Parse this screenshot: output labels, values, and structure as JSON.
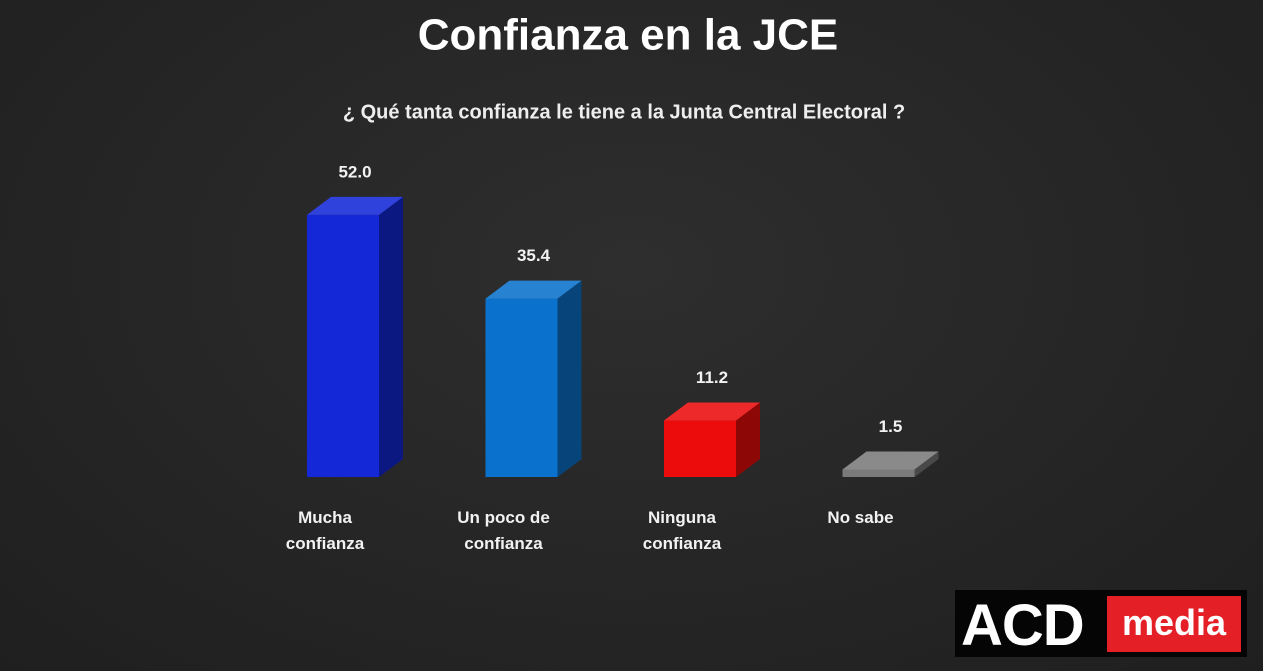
{
  "chart_data": {
    "type": "bar3d",
    "title": "Confianza en la JCE",
    "subtitle": "¿ Qué tanta confianza le tiene a la Junta Central Electoral ?",
    "categories": [
      "Mucha confianza",
      "Un poco de confianza",
      "Ninguna confianza",
      "No sabe"
    ],
    "values": [
      52.0,
      35.4,
      11.2,
      1.5
    ],
    "value_labels": [
      "52.0",
      "35.4",
      "11.2",
      "1.5"
    ],
    "colors": [
      "#1428d8",
      "#0a72cc",
      "#ec0c0c",
      "#7a7a7a"
    ]
  },
  "logo": {
    "left": "ACD",
    "right": "media"
  }
}
